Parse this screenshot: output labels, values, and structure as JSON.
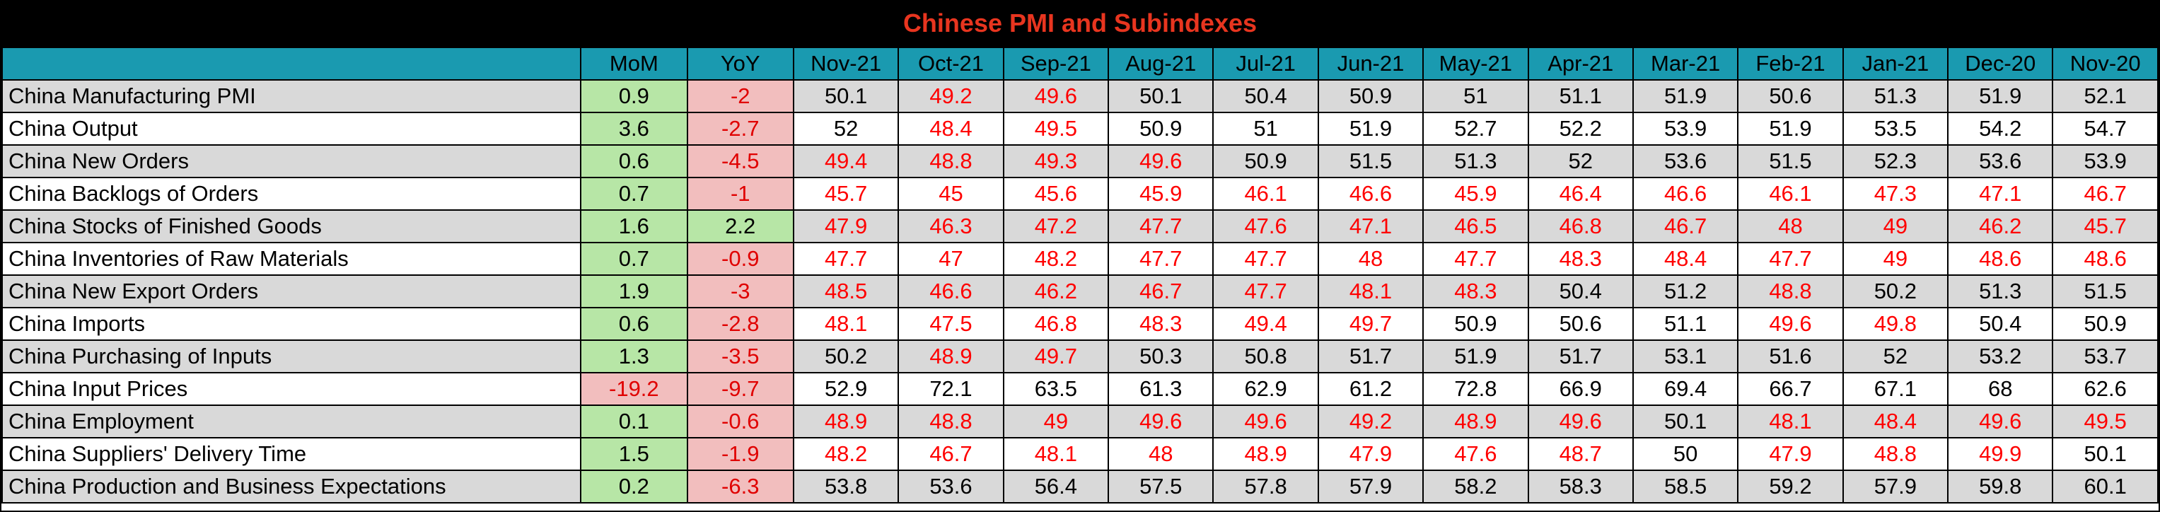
{
  "title": "Chinese PMI and Subindexes",
  "colors": {
    "title": "#e8351f",
    "header_bg": "#1a9ab0",
    "positive_change_bg": "#b7e6a6",
    "negative_change_bg": "#f2bebe",
    "below_50": "#ff0000",
    "shade": "#d9d9d9"
  },
  "columns": [
    "",
    "MoM",
    "YoY",
    "Nov-21",
    "Oct-21",
    "Sep-21",
    "Aug-21",
    "Jul-21",
    "Jun-21",
    "May-21",
    "Apr-21",
    "Mar-21",
    "Feb-21",
    "Jan-21",
    "Dec-20",
    "Nov-20"
  ],
  "rows": [
    {
      "name": "China Manufacturing PMI",
      "values": [
        "0.9",
        "-2",
        "50.1",
        "49.2",
        "49.6",
        "50.1",
        "50.4",
        "50.9",
        "51",
        "51.1",
        "51.9",
        "50.6",
        "51.3",
        "51.9",
        "52.1"
      ]
    },
    {
      "name": "China Output",
      "values": [
        "3.6",
        "-2.7",
        "52",
        "48.4",
        "49.5",
        "50.9",
        "51",
        "51.9",
        "52.7",
        "52.2",
        "53.9",
        "51.9",
        "53.5",
        "54.2",
        "54.7"
      ]
    },
    {
      "name": "China New Orders",
      "values": [
        "0.6",
        "-4.5",
        "49.4",
        "48.8",
        "49.3",
        "49.6",
        "50.9",
        "51.5",
        "51.3",
        "52",
        "53.6",
        "51.5",
        "52.3",
        "53.6",
        "53.9"
      ]
    },
    {
      "name": "China Backlogs of Orders",
      "values": [
        "0.7",
        "-1",
        "45.7",
        "45",
        "45.6",
        "45.9",
        "46.1",
        "46.6",
        "45.9",
        "46.4",
        "46.6",
        "46.1",
        "47.3",
        "47.1",
        "46.7"
      ]
    },
    {
      "name": "China Stocks of Finished Goods",
      "values": [
        "1.6",
        "2.2",
        "47.9",
        "46.3",
        "47.2",
        "47.7",
        "47.6",
        "47.1",
        "46.5",
        "46.8",
        "46.7",
        "48",
        "49",
        "46.2",
        "45.7"
      ]
    },
    {
      "name": "China Inventories of Raw Materials",
      "values": [
        "0.7",
        "-0.9",
        "47.7",
        "47",
        "48.2",
        "47.7",
        "47.7",
        "48",
        "47.7",
        "48.3",
        "48.4",
        "47.7",
        "49",
        "48.6",
        "48.6"
      ]
    },
    {
      "name": "China New Export Orders",
      "values": [
        "1.9",
        "-3",
        "48.5",
        "46.6",
        "46.2",
        "46.7",
        "47.7",
        "48.1",
        "48.3",
        "50.4",
        "51.2",
        "48.8",
        "50.2",
        "51.3",
        "51.5"
      ]
    },
    {
      "name": "China Imports",
      "values": [
        "0.6",
        "-2.8",
        "48.1",
        "47.5",
        "46.8",
        "48.3",
        "49.4",
        "49.7",
        "50.9",
        "50.6",
        "51.1",
        "49.6",
        "49.8",
        "50.4",
        "50.9"
      ]
    },
    {
      "name": "China Purchasing of Inputs",
      "values": [
        "1.3",
        "-3.5",
        "50.2",
        "48.9",
        "49.7",
        "50.3",
        "50.8",
        "51.7",
        "51.9",
        "51.7",
        "53.1",
        "51.6",
        "52",
        "53.2",
        "53.7"
      ]
    },
    {
      "name": "China Input Prices",
      "values": [
        "-19.2",
        "-9.7",
        "52.9",
        "72.1",
        "63.5",
        "61.3",
        "62.9",
        "61.2",
        "72.8",
        "66.9",
        "69.4",
        "66.7",
        "67.1",
        "68",
        "62.6"
      ]
    },
    {
      "name": "China Employment",
      "values": [
        "0.1",
        "-0.6",
        "48.9",
        "48.8",
        "49",
        "49.6",
        "49.6",
        "49.2",
        "48.9",
        "49.6",
        "50.1",
        "48.1",
        "48.4",
        "49.6",
        "49.5"
      ]
    },
    {
      "name": "China Suppliers' Delivery Time",
      "values": [
        "1.5",
        "-1.9",
        "48.2",
        "46.7",
        "48.1",
        "48",
        "48.9",
        "47.9",
        "47.6",
        "48.7",
        "50",
        "47.9",
        "48.8",
        "49.9",
        "50.1"
      ]
    },
    {
      "name": "China Production and Business Expectations",
      "values": [
        "0.2",
        "-6.3",
        "53.8",
        "53.6",
        "56.4",
        "57.5",
        "57.8",
        "57.9",
        "58.2",
        "58.3",
        "58.5",
        "59.2",
        "57.9",
        "59.8",
        "60.1"
      ]
    }
  ]
}
